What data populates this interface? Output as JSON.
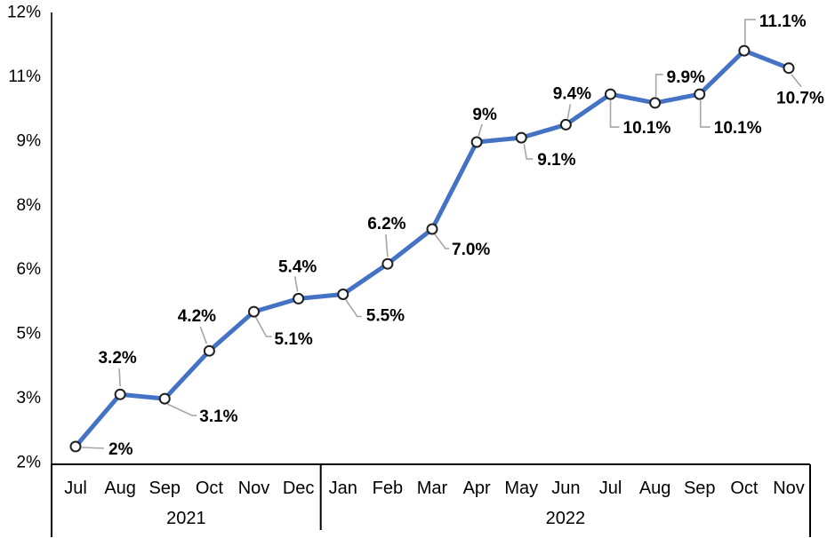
{
  "chart_data": {
    "type": "line",
    "title": "",
    "legend": "none",
    "grid": "off",
    "ylim": [
      2,
      12
    ],
    "y_axis": {
      "tick_labels": [
        "12%",
        "11%",
        "9%",
        "8%",
        "6%",
        "5%",
        "3%",
        "2%"
      ]
    },
    "x_axis": {
      "months": [
        "Jul",
        "Aug",
        "Sep",
        "Oct",
        "Nov",
        "Dec",
        "Jan",
        "Feb",
        "Mar",
        "Apr",
        "May",
        "Jun",
        "Jul",
        "Aug",
        "Sep",
        "Oct",
        "Nov"
      ],
      "year_groups": [
        {
          "label": "2021",
          "from": 0,
          "to": 5
        },
        {
          "label": "2022",
          "from": 6,
          "to": 16
        }
      ]
    },
    "series": [
      {
        "name": "inflation-rate",
        "points": [
          {
            "month": "Jul",
            "year": 2021,
            "value": 2.0,
            "label": "2%",
            "label_anchor": "start",
            "label_dx": 37,
            "label_dy": 9,
            "leader": [
              [
                7,
                1
              ],
              [
                32,
                2
              ]
            ]
          },
          {
            "month": "Aug",
            "year": 2021,
            "value": 3.2,
            "label": "3.2%",
            "label_anchor": "middle",
            "label_dx": -3,
            "label_dy": -35,
            "leader": [
              [
                -1,
                -29
              ],
              [
                0,
                -9
              ]
            ]
          },
          {
            "month": "Sep",
            "year": 2021,
            "value": 3.1,
            "label": "3.1%",
            "label_anchor": "start",
            "label_dx": 39,
            "label_dy": 26,
            "leader": [
              [
                3,
                6
              ],
              [
                31,
                19
              ],
              [
                36,
                19
              ]
            ]
          },
          {
            "month": "Oct",
            "year": 2021,
            "value": 4.2,
            "label": "4.2%",
            "label_anchor": "middle",
            "label_dx": -14,
            "label_dy": -33,
            "leader": [
              [
                -10,
                -27
              ],
              [
                -3,
                -8
              ]
            ]
          },
          {
            "month": "Nov",
            "year": 2021,
            "value": 5.1,
            "label": "5.1%",
            "label_anchor": "start",
            "label_dx": 23,
            "label_dy": 37,
            "leader": [
              [
                2,
                6
              ],
              [
                14,
                28
              ],
              [
                20,
                28
              ]
            ]
          },
          {
            "month": "Dec",
            "year": 2021,
            "value": 5.4,
            "label": "5.4%",
            "label_anchor": "middle",
            "label_dx": -1,
            "label_dy": -30,
            "leader": [
              [
                -4,
                -25
              ],
              [
                -1,
                -8
              ]
            ]
          },
          {
            "month": "Jan",
            "year": 2022,
            "value": 5.5,
            "label": "5.5%",
            "label_anchor": "start",
            "label_dx": 26,
            "label_dy": 30,
            "leader": [
              [
                3,
                6
              ],
              [
                16,
                25
              ],
              [
                21,
                25
              ]
            ]
          },
          {
            "month": "Feb",
            "year": 2022,
            "value": 6.2,
            "label": "6.2%",
            "label_anchor": "middle",
            "label_dx": -1,
            "label_dy": -39,
            "leader": [
              [
                -2,
                -33
              ],
              [
                0,
                -8
              ]
            ]
          },
          {
            "month": "Mar",
            "year": 2022,
            "value": 7.0,
            "label": "7.0%",
            "label_anchor": "start",
            "label_dx": 22,
            "label_dy": 29,
            "leader": [
              [
                3,
                6
              ],
              [
                15,
                22
              ],
              [
                19,
                22
              ]
            ]
          },
          {
            "month": "Apr",
            "year": 2022,
            "value": 9.0,
            "label": "9%",
            "label_anchor": "middle",
            "label_dx": 9,
            "label_dy": -25,
            "leader": [
              [
                6,
                -20
              ],
              [
                2,
                -7
              ]
            ]
          },
          {
            "month": "May",
            "year": 2022,
            "value": 9.1,
            "label": "9.1%",
            "label_anchor": "start",
            "label_dx": 18,
            "label_dy": 31,
            "leader": [
              [
                3,
                7
              ],
              [
                6,
                24
              ],
              [
                13,
                24
              ]
            ]
          },
          {
            "month": "Jun",
            "year": 2022,
            "value": 9.4,
            "label": "9.4%",
            "label_anchor": "middle",
            "label_dx": 7,
            "label_dy": -29,
            "leader": [
              [
                5,
                -23
              ],
              [
                2,
                -7
              ]
            ]
          },
          {
            "month": "Jul",
            "year": 2022,
            "value": 10.1,
            "label": "10.1%",
            "label_anchor": "start",
            "label_dx": 14,
            "label_dy": 44,
            "leader": [
              [
                0,
                7
              ],
              [
                0,
                37
              ],
              [
                10,
                37
              ]
            ]
          },
          {
            "month": "Aug",
            "year": 2022,
            "value": 9.9,
            "label": "9.9%",
            "label_anchor": "start",
            "label_dx": 13,
            "label_dy": -23,
            "leader": [
              [
                1,
                -7
              ],
              [
                1,
                -32
              ],
              [
                9,
                -32
              ]
            ]
          },
          {
            "month": "Sep",
            "year": 2022,
            "value": 10.1,
            "label": "10.1%",
            "label_anchor": "start",
            "label_dx": 16,
            "label_dy": 44,
            "leader": [
              [
                1,
                7
              ],
              [
                1,
                37
              ],
              [
                12,
                37
              ]
            ]
          },
          {
            "month": "Oct",
            "year": 2022,
            "value": 11.1,
            "label": "11.1%",
            "label_anchor": "start",
            "label_dx": 17,
            "label_dy": -27,
            "leader": [
              [
                1,
                -7
              ],
              [
                1,
                -35
              ],
              [
                13,
                -35
              ]
            ]
          },
          {
            "month": "Nov",
            "year": 2022,
            "value": 10.7,
            "label": "10.7%",
            "label_anchor": "start",
            "label_dx": -14,
            "label_dy": 40,
            "leader": [
              [
                3,
                7
              ],
              [
                14,
                21
              ]
            ]
          }
        ]
      }
    ],
    "colors": {
      "line": "#4472C4",
      "marker_fill": "#FFFFFF",
      "marker_stroke": "#1F1F1F",
      "leader_line": "#A6A6A6",
      "axis_line": "#000000",
      "text": "#000000"
    }
  }
}
